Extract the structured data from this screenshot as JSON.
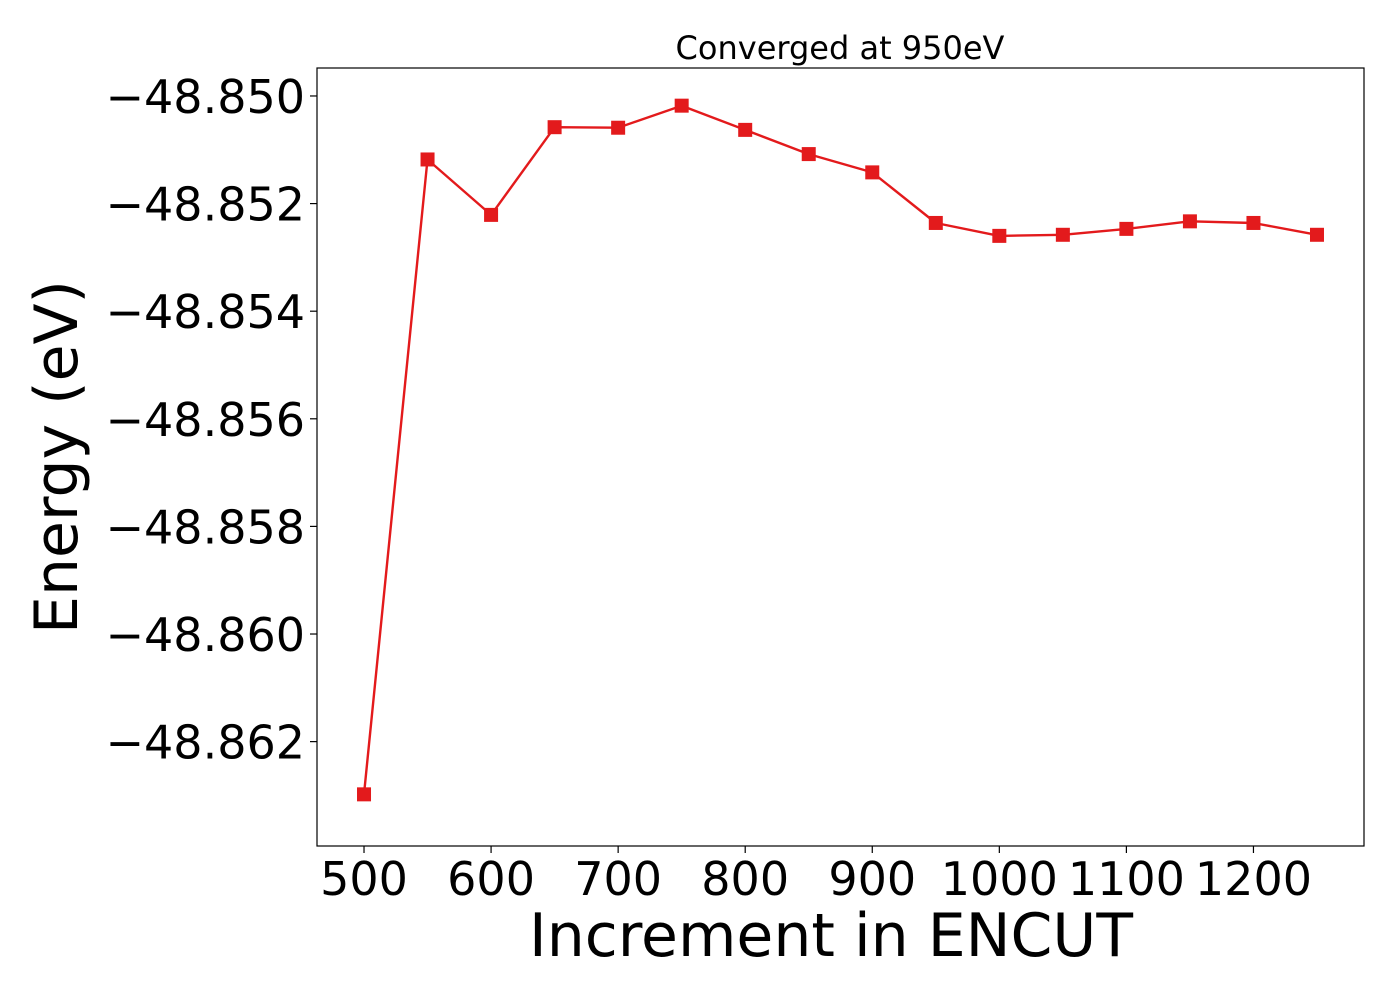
{
  "chart_data": {
    "type": "line",
    "title": "Converged at 950eV",
    "xlabel": "Increment in ENCUT",
    "ylabel": "Energy (eV)",
    "xlim": [
      463,
      1287
    ],
    "ylim": [
      -48.86394,
      -48.84948
    ],
    "xticks": [
      500,
      600,
      700,
      800,
      900,
      1000,
      1100,
      1200
    ],
    "xtick_labels": [
      "500",
      "600",
      "700",
      "800",
      "900",
      "1000",
      "1100",
      "1200"
    ],
    "yticks": [
      -48.85,
      -48.852,
      -48.854,
      -48.856,
      -48.858,
      -48.86,
      -48.862
    ],
    "ytick_labels": [
      "−48.850",
      "−48.852",
      "−48.854",
      "−48.856",
      "−48.858",
      "−48.860",
      "−48.862"
    ],
    "grid": false,
    "legend": "none",
    "series": [
      {
        "color": "#e31a1c",
        "marker": "square",
        "x": [
          500,
          550,
          600,
          650,
          700,
          750,
          800,
          850,
          900,
          950,
          1000,
          1050,
          1100,
          1150,
          1200,
          1250
        ],
        "y": [
          -48.86298,
          -48.85118,
          -48.85221,
          -48.85058,
          -48.85059,
          -48.85018,
          -48.85063,
          -48.85108,
          -48.85142,
          -48.85236,
          -48.8526,
          -48.85258,
          -48.85247,
          -48.85233,
          -48.85236,
          -48.85258
        ]
      }
    ]
  }
}
